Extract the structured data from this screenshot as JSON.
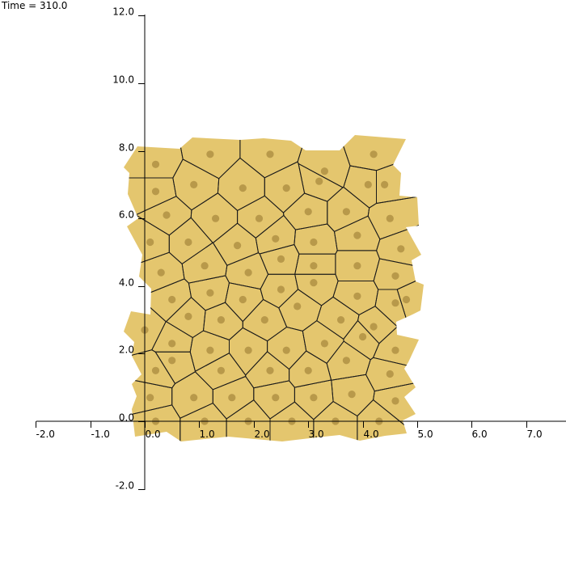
{
  "header": {
    "time_label": "Time = 310.0"
  },
  "colors": {
    "cell_fill": "#e4c66e",
    "cell_edge": "#1a1a1a",
    "nucleus": "#b8994a",
    "axis": "#000000",
    "background": "#ffffff"
  },
  "axes": {
    "x_ticks": [
      "-2.0",
      "-1.0",
      "0.0",
      "1.0",
      "2.0",
      "3.0",
      "4.0",
      "5.0",
      "6.0",
      "7.0"
    ],
    "y_ticks": [
      "12.0",
      "10.0",
      "8.0",
      "6.0",
      "4.0",
      "2.0",
      "0.0",
      "-2.0"
    ]
  },
  "chart_data": {
    "type": "scatter",
    "title": "",
    "xlabel": "",
    "ylabel": "",
    "xlim": [
      -2.0,
      7.6
    ],
    "ylim": [
      -2.0,
      12.0
    ],
    "grid": false,
    "series": [
      {
        "points": [
          [
            0.2,
            0.0
          ],
          [
            1.1,
            0.0
          ],
          [
            1.9,
            0.0
          ],
          [
            2.7,
            0.0
          ],
          [
            3.5,
            0.0
          ],
          [
            4.3,
            0.0
          ],
          [
            0.1,
            0.7
          ],
          [
            0.9,
            0.7
          ],
          [
            1.6,
            0.7
          ],
          [
            2.4,
            0.7
          ],
          [
            3.1,
            0.7
          ],
          [
            3.8,
            0.8
          ],
          [
            4.6,
            0.6
          ],
          [
            0.2,
            1.5
          ],
          [
            0.5,
            1.8
          ],
          [
            1.4,
            1.5
          ],
          [
            2.3,
            1.5
          ],
          [
            3.0,
            1.5
          ],
          [
            3.7,
            1.8
          ],
          [
            4.5,
            1.4
          ],
          [
            0.5,
            2.3
          ],
          [
            1.2,
            2.1
          ],
          [
            1.9,
            2.1
          ],
          [
            2.6,
            2.1
          ],
          [
            3.3,
            2.3
          ],
          [
            4.0,
            2.5
          ],
          [
            4.6,
            2.1
          ],
          [
            0.0,
            2.7
          ],
          [
            0.8,
            3.1
          ],
          [
            1.4,
            3.0
          ],
          [
            2.2,
            3.0
          ],
          [
            2.8,
            3.4
          ],
          [
            3.6,
            3.0
          ],
          [
            4.2,
            2.8
          ],
          [
            0.5,
            3.6
          ],
          [
            1.2,
            3.8
          ],
          [
            1.8,
            3.6
          ],
          [
            2.5,
            3.9
          ],
          [
            3.1,
            4.1
          ],
          [
            3.9,
            3.7
          ],
          [
            4.6,
            3.5
          ],
          [
            4.8,
            3.6
          ],
          [
            0.3,
            4.4
          ],
          [
            1.1,
            4.6
          ],
          [
            1.9,
            4.4
          ],
          [
            2.5,
            4.8
          ],
          [
            3.1,
            4.6
          ],
          [
            3.9,
            4.6
          ],
          [
            4.6,
            4.3
          ],
          [
            0.1,
            5.3
          ],
          [
            0.8,
            5.3
          ],
          [
            1.7,
            5.2
          ],
          [
            2.4,
            5.4
          ],
          [
            3.1,
            5.3
          ],
          [
            3.9,
            5.5
          ],
          [
            4.7,
            5.1
          ],
          [
            0.4,
            6.1
          ],
          [
            1.3,
            6.0
          ],
          [
            2.1,
            6.0
          ],
          [
            3.0,
            6.2
          ],
          [
            3.7,
            6.2
          ],
          [
            4.5,
            6.0
          ],
          [
            0.2,
            6.8
          ],
          [
            0.9,
            7.0
          ],
          [
            1.8,
            6.9
          ],
          [
            2.6,
            6.9
          ],
          [
            3.2,
            7.1
          ],
          [
            4.1,
            7.0
          ],
          [
            4.4,
            7.0
          ],
          [
            0.2,
            7.6
          ],
          [
            1.2,
            7.9
          ],
          [
            2.3,
            7.9
          ],
          [
            3.3,
            7.4
          ],
          [
            4.2,
            7.9
          ]
        ]
      }
    ]
  }
}
